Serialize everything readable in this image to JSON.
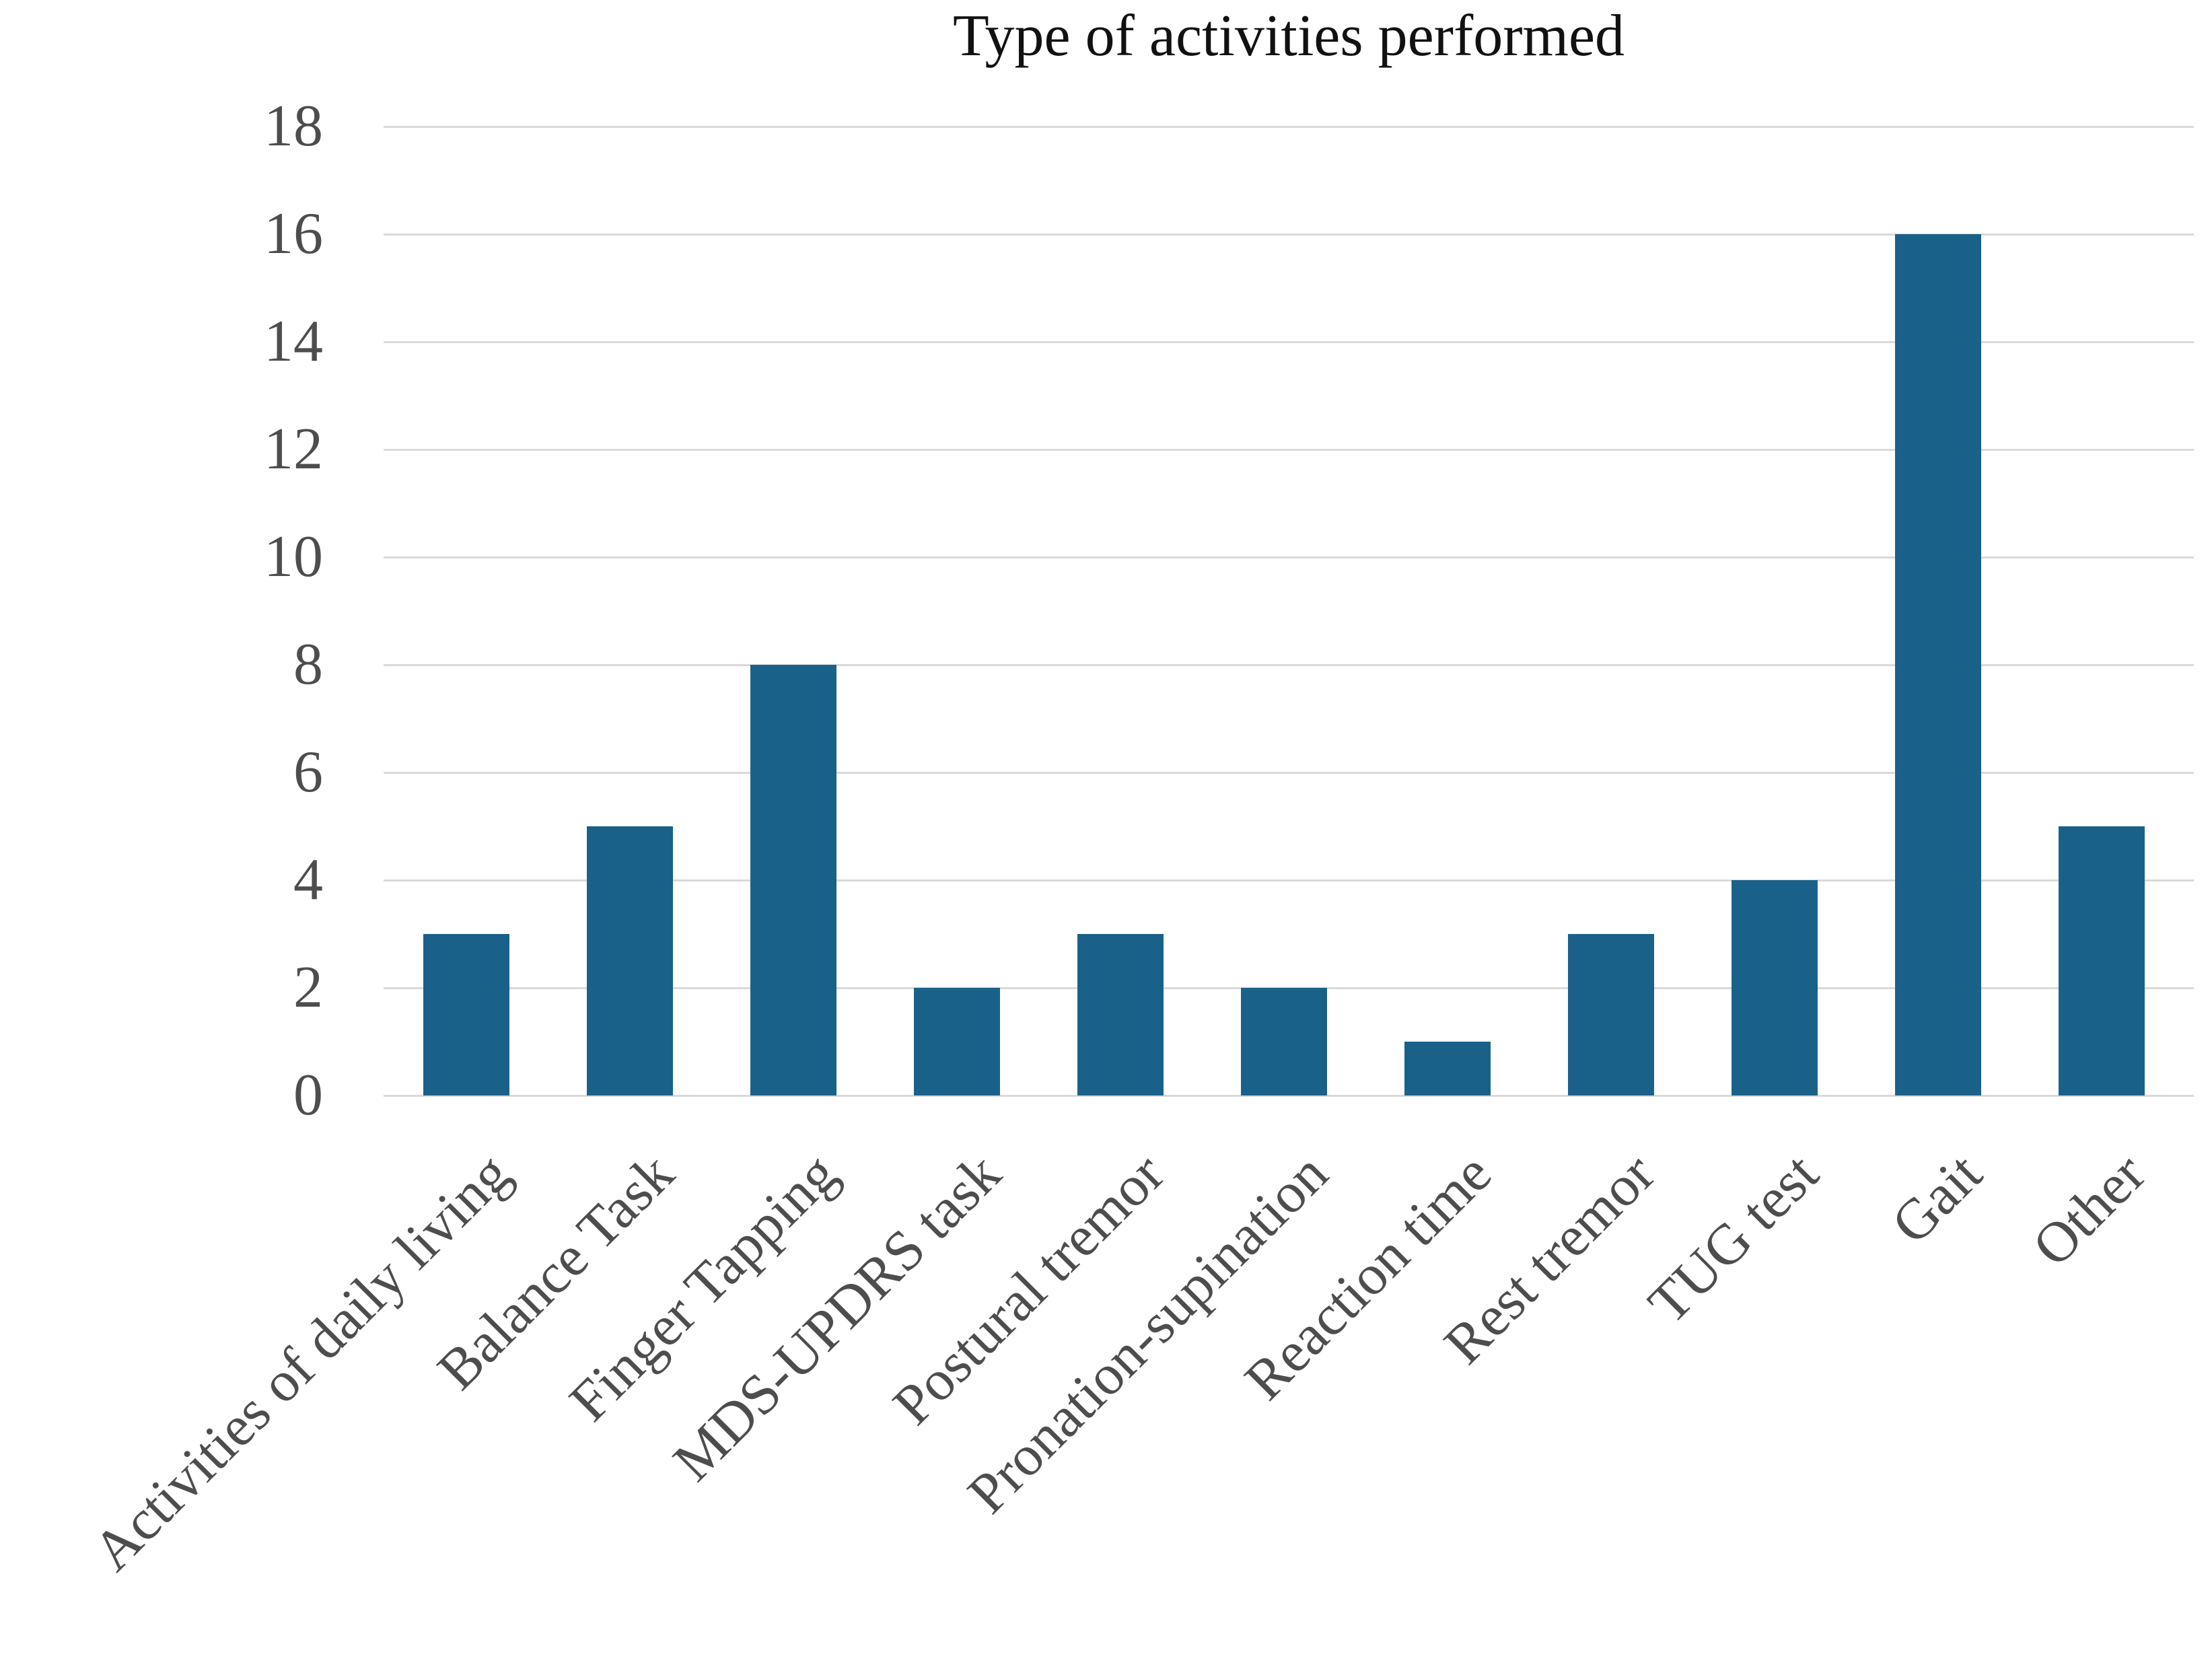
{
  "chart_data": {
    "type": "bar",
    "title": "Type of activities performed",
    "categories": [
      "Activities of daily living",
      "Balance Task",
      "Finger Tapping",
      "MDS-UPDRS task",
      "Postural tremor",
      "Pronation-supination",
      "Reaction time",
      "Rest tremor",
      "TUG test",
      "Gait",
      "Other"
    ],
    "values": [
      3,
      5,
      8,
      2,
      3,
      2,
      1,
      3,
      4,
      16,
      5
    ],
    "xlabel": "",
    "ylabel": "",
    "ylim": [
      0,
      18
    ],
    "yticks": [
      0,
      2,
      4,
      6,
      8,
      10,
      12,
      14,
      16,
      18
    ],
    "grid": "horizontal-only",
    "legend": "none",
    "x_tick_rotation_deg": 45
  },
  "style": {
    "bar_color": "#1A618A",
    "gridline_color": "#D9D9D9",
    "tick_label_color": "#4D4D4D",
    "title_color": "#111111",
    "background": "#FFFFFF"
  }
}
